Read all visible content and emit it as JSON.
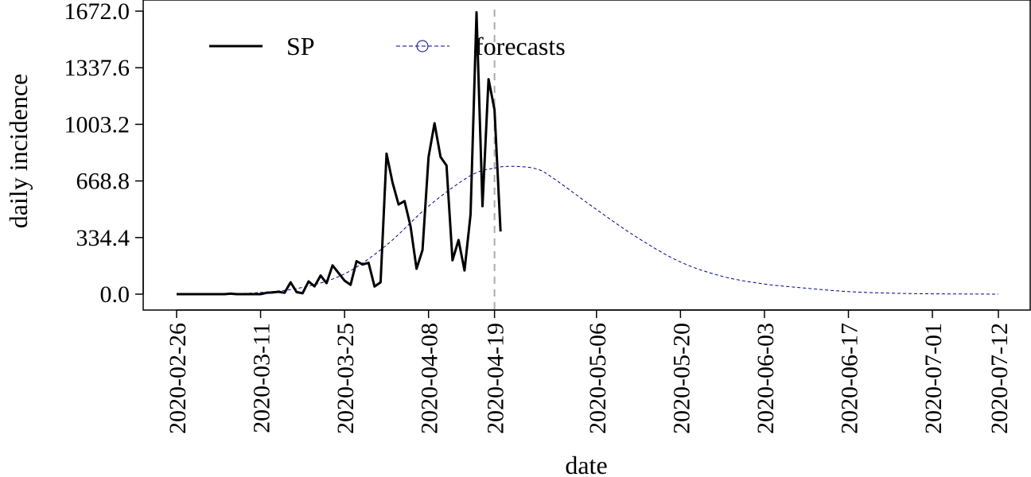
{
  "chart_data": {
    "type": "line",
    "xlabel": "date",
    "ylabel": "daily incidence",
    "ylim": [
      0,
      1672.0
    ],
    "xlim": [
      "2020-02-26",
      "2020-07-12"
    ],
    "yticks": [
      "0.0",
      "334.4",
      "668.8",
      "1003.2",
      "1337.6",
      "1672.0"
    ],
    "xticks": [
      "2020-02-26",
      "2020-03-11",
      "2020-03-25",
      "2020-04-08",
      "2020-04-19",
      "2020-05-06",
      "2020-05-20",
      "2020-06-03",
      "2020-06-17",
      "2020-07-01",
      "2020-07-12"
    ],
    "legend_position": "top-left",
    "vline_date": "2020-04-19",
    "series": [
      {
        "name": "SP",
        "color": "#000000",
        "style": "solid",
        "points": [
          [
            "2020-02-26",
            0
          ],
          [
            "2020-02-27",
            0
          ],
          [
            "2020-02-28",
            0
          ],
          [
            "2020-02-29",
            0
          ],
          [
            "2020-03-01",
            0
          ],
          [
            "2020-03-02",
            0
          ],
          [
            "2020-03-03",
            0
          ],
          [
            "2020-03-04",
            0
          ],
          [
            "2020-03-05",
            0
          ],
          [
            "2020-03-06",
            3
          ],
          [
            "2020-03-07",
            0
          ],
          [
            "2020-03-08",
            0
          ],
          [
            "2020-03-09",
            0
          ],
          [
            "2020-03-10",
            0
          ],
          [
            "2020-03-11",
            0
          ],
          [
            "2020-03-12",
            8
          ],
          [
            "2020-03-13",
            10
          ],
          [
            "2020-03-14",
            14
          ],
          [
            "2020-03-15",
            8
          ],
          [
            "2020-03-16",
            70
          ],
          [
            "2020-03-17",
            12
          ],
          [
            "2020-03-18",
            5
          ],
          [
            "2020-03-19",
            75
          ],
          [
            "2020-03-20",
            46
          ],
          [
            "2020-03-21",
            110
          ],
          [
            "2020-03-22",
            65
          ],
          [
            "2020-03-23",
            170
          ],
          [
            "2020-03-24",
            125
          ],
          [
            "2020-03-25",
            80
          ],
          [
            "2020-03-26",
            55
          ],
          [
            "2020-03-27",
            195
          ],
          [
            "2020-03-28",
            175
          ],
          [
            "2020-03-29",
            185
          ],
          [
            "2020-03-30",
            45
          ],
          [
            "2020-03-31",
            70
          ],
          [
            "2020-04-01",
            830
          ],
          [
            "2020-04-02",
            660
          ],
          [
            "2020-04-03",
            530
          ],
          [
            "2020-04-04",
            550
          ],
          [
            "2020-04-05",
            400
          ],
          [
            "2020-04-06",
            150
          ],
          [
            "2020-04-07",
            260
          ],
          [
            "2020-04-08",
            810
          ],
          [
            "2020-04-09",
            1010
          ],
          [
            "2020-04-10",
            810
          ],
          [
            "2020-04-11",
            760
          ],
          [
            "2020-04-12",
            200
          ],
          [
            "2020-04-13",
            320
          ],
          [
            "2020-04-14",
            140
          ],
          [
            "2020-04-15",
            470
          ],
          [
            "2020-04-16",
            1665
          ],
          [
            "2020-04-17",
            520
          ],
          [
            "2020-04-18",
            1270
          ],
          [
            "2020-04-19",
            1090
          ],
          [
            "2020-04-20",
            370
          ]
        ]
      },
      {
        "name": "forecasts",
        "color": "#00008b",
        "style": "dashed",
        "points": [
          [
            "2020-02-26",
            0
          ],
          [
            "2020-03-04",
            1
          ],
          [
            "2020-03-11",
            10
          ],
          [
            "2020-03-18",
            40
          ],
          [
            "2020-03-25",
            120
          ],
          [
            "2020-04-01",
            290
          ],
          [
            "2020-04-08",
            520
          ],
          [
            "2020-04-15",
            700
          ],
          [
            "2020-04-19",
            745
          ],
          [
            "2020-04-22",
            755
          ],
          [
            "2020-04-26",
            740
          ],
          [
            "2020-04-29",
            680
          ],
          [
            "2020-05-06",
            500
          ],
          [
            "2020-05-13",
            330
          ],
          [
            "2020-05-20",
            190
          ],
          [
            "2020-05-27",
            105
          ],
          [
            "2020-06-03",
            60
          ],
          [
            "2020-06-10",
            35
          ],
          [
            "2020-06-17",
            15
          ],
          [
            "2020-06-24",
            6
          ],
          [
            "2020-07-01",
            2
          ],
          [
            "2020-07-12",
            0
          ]
        ]
      }
    ]
  }
}
